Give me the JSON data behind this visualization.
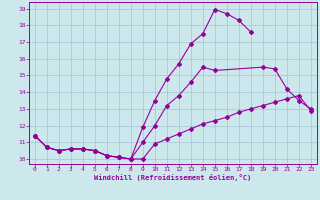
{
  "xlabel": "Windchill (Refroidissement éolien,°C)",
  "bg_color": "#cce8ec",
  "line_color": "#990099",
  "grid_color": "#99bbcc",
  "xlim": [
    -0.5,
    23.5
  ],
  "ylim": [
    9.7,
    19.4
  ],
  "yticks": [
    10,
    11,
    12,
    13,
    14,
    15,
    16,
    17,
    18,
    19
  ],
  "xticks": [
    0,
    1,
    2,
    3,
    4,
    5,
    6,
    7,
    8,
    9,
    10,
    11,
    12,
    13,
    14,
    15,
    16,
    17,
    18,
    19,
    20,
    21,
    22,
    23
  ],
  "line1_x": [
    0,
    1,
    2,
    3,
    4,
    5,
    6,
    7,
    8,
    9,
    10,
    11,
    12,
    13,
    14,
    15,
    16,
    17,
    18,
    19,
    20,
    21,
    22,
    23
  ],
  "line1_y": [
    11.4,
    10.7,
    10.5,
    10.6,
    10.6,
    10.5,
    10.2,
    10.1,
    10.0,
    10.0,
    10.9,
    11.2,
    11.5,
    11.8,
    12.1,
    12.3,
    12.5,
    12.8,
    13.0,
    13.2,
    13.4,
    13.6,
    13.8,
    12.9
  ],
  "line2_x": [
    0,
    1,
    2,
    3,
    4,
    5,
    6,
    7,
    8,
    9,
    10,
    11,
    12,
    13,
    14,
    15,
    16,
    17,
    18
  ],
  "line2_y": [
    11.4,
    10.7,
    10.5,
    10.6,
    10.6,
    10.5,
    10.2,
    10.1,
    10.0,
    11.9,
    13.5,
    14.8,
    15.7,
    16.9,
    17.5,
    18.95,
    18.7,
    18.3,
    17.6
  ],
  "line3_x": [
    0,
    1,
    2,
    3,
    4,
    5,
    6,
    7,
    8,
    9,
    10,
    11,
    12,
    13,
    14,
    15,
    19,
    20,
    21,
    22,
    23
  ],
  "line3_y": [
    11.4,
    10.7,
    10.5,
    10.6,
    10.6,
    10.5,
    10.2,
    10.1,
    10.0,
    11.0,
    12.0,
    13.2,
    13.8,
    14.6,
    15.5,
    15.3,
    15.5,
    15.4,
    14.2,
    13.5,
    13.0
  ]
}
